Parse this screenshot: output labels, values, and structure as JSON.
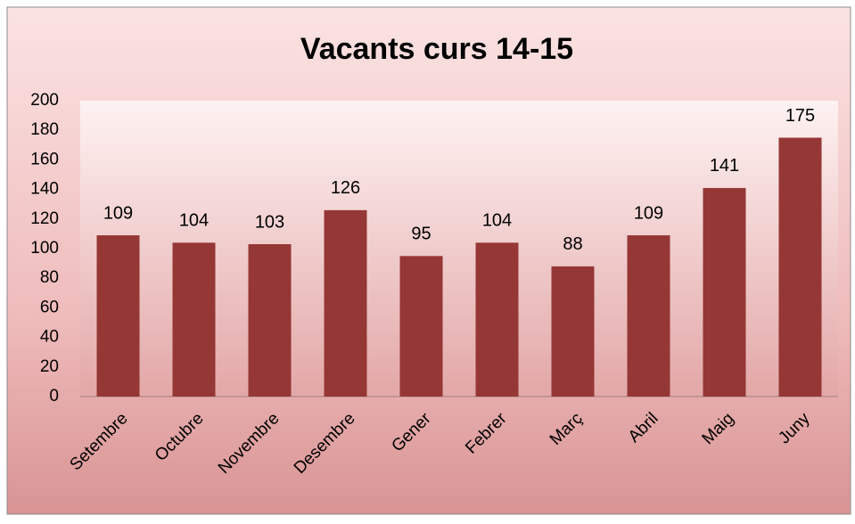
{
  "chart_data": {
    "type": "bar",
    "title": "Vacants curs 14-15",
    "categories": [
      "Setembre",
      "Octubre",
      "Novembre",
      "Desembre",
      "Gener",
      "Febrer",
      "Març",
      "Abril",
      "Maig",
      "Juny"
    ],
    "values": [
      109,
      104,
      103,
      126,
      95,
      104,
      88,
      109,
      141,
      175
    ],
    "color": "#953735",
    "ylim": [
      0,
      200
    ],
    "yticks": [
      0,
      20,
      40,
      60,
      80,
      100,
      120,
      140,
      160,
      180,
      200
    ],
    "grid": false
  }
}
